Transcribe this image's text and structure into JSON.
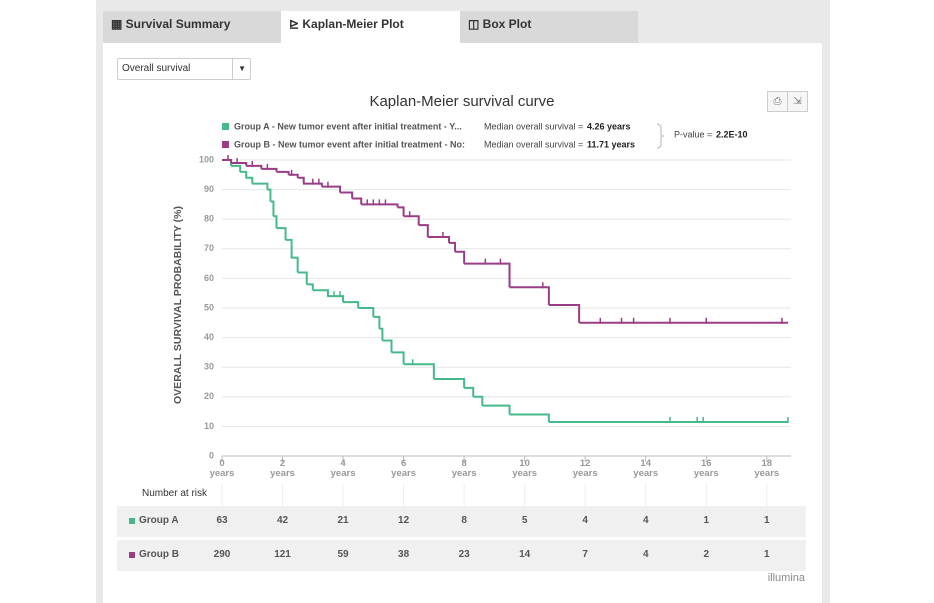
{
  "tabs": [
    "Survival Summary",
    "Kaplan-Meier Plot",
    "Box Plot"
  ],
  "dropdown": "Overall survival",
  "chart_data": {
    "type": "step",
    "title": "Kaplan-Meier survival curve",
    "ylabel": "OVERALL SURVIVAL PROBABILITY (%)",
    "xlim": [
      0,
      18.8
    ],
    "xticks": [
      {
        "value": 0,
        "label": "0 years"
      },
      {
        "value": 2,
        "label": "2 years"
      },
      {
        "value": 4,
        "label": "4 years"
      },
      {
        "value": 6,
        "label": "6 years"
      },
      {
        "value": 8,
        "label": "8 years"
      },
      {
        "value": 10,
        "label": "10 years"
      },
      {
        "value": 12,
        "label": "12 years"
      },
      {
        "value": 14,
        "label": "14 years"
      },
      {
        "value": 16,
        "label": "16 years"
      },
      {
        "value": 18,
        "label": "18 years"
      }
    ],
    "ylim": [
      0,
      100
    ],
    "yticks": [
      0,
      10,
      20,
      30,
      40,
      50,
      60,
      70,
      80,
      90,
      100
    ],
    "grid": true,
    "series": [
      {
        "name": "Group A - New tumor event after initial treatment - Y...",
        "color": "#45b98a",
        "median_label": "Median overall survival =",
        "median": "4.26 years",
        "x": [
          0,
          0.3,
          0.6,
          0.8,
          1.0,
          1.5,
          1.6,
          1.7,
          1.8,
          2.1,
          2.3,
          2.5,
          2.8,
          3.0,
          3.5,
          4.0,
          4.5,
          5.0,
          5.2,
          5.3,
          5.6,
          6.0,
          7.0,
          8.0,
          8.3,
          8.6,
          9.5,
          10.8,
          18.7
        ],
        "values": [
          100,
          98,
          96,
          94,
          92,
          90,
          86,
          81,
          77,
          73,
          67,
          62,
          58,
          56,
          54,
          52,
          50,
          47,
          43,
          39,
          35,
          31,
          26,
          23,
          20,
          17,
          14,
          11.5,
          11.5
        ],
        "censored_x": [
          0.8,
          2.3,
          3.5,
          3.7,
          3.9,
          6.3,
          14.8,
          15.7,
          15.9,
          18.7
        ],
        "censored_y": [
          94,
          67,
          54,
          54,
          54,
          31,
          11.5,
          11.5,
          11.5,
          11.5
        ]
      },
      {
        "name": "Group B - New tumor event after initial treatment - No:",
        "color": "#9b3d86",
        "median_label": "Median overall survival =",
        "median": "11.71 years",
        "x": [
          0,
          0.3,
          0.8,
          1.3,
          1.8,
          2.2,
          2.5,
          2.7,
          3.3,
          3.9,
          4.3,
          4.6,
          5.8,
          6.0,
          6.5,
          6.8,
          7.5,
          7.7,
          8.0,
          9.5,
          10.8,
          11.8,
          18.7
        ],
        "values": [
          100,
          99,
          98,
          97,
          96,
          95,
          94,
          92,
          91,
          89,
          87,
          85,
          84,
          81,
          78,
          74,
          72,
          69,
          65,
          57,
          51,
          45,
          45
        ],
        "censored_x": [
          0.2,
          0.5,
          1.0,
          1.5,
          2.3,
          2.7,
          3.0,
          3.2,
          3.5,
          4.8,
          5.0,
          5.2,
          5.4,
          6.2,
          7.3,
          8.7,
          9.2,
          10.6,
          12.5,
          13.2,
          13.6,
          14.8,
          16.0,
          18.5
        ],
        "censored_y": [
          100,
          99,
          98,
          97,
          95,
          92,
          92,
          92,
          91,
          85,
          85,
          85,
          85,
          81,
          74,
          65,
          65,
          57,
          45,
          45,
          45,
          45,
          45,
          45
        ]
      }
    ],
    "p_value_label": "P-value =",
    "p_value": "2.2E-10"
  },
  "risk_table": {
    "title": "Number at risk",
    "rows": [
      {
        "name": "Group A",
        "values": [
          63,
          42,
          21,
          12,
          8,
          5,
          4,
          4,
          1,
          1
        ]
      },
      {
        "name": "Group B",
        "values": [
          290,
          121,
          59,
          38,
          23,
          14,
          7,
          4,
          2,
          1
        ]
      }
    ]
  },
  "footer": "illumina"
}
